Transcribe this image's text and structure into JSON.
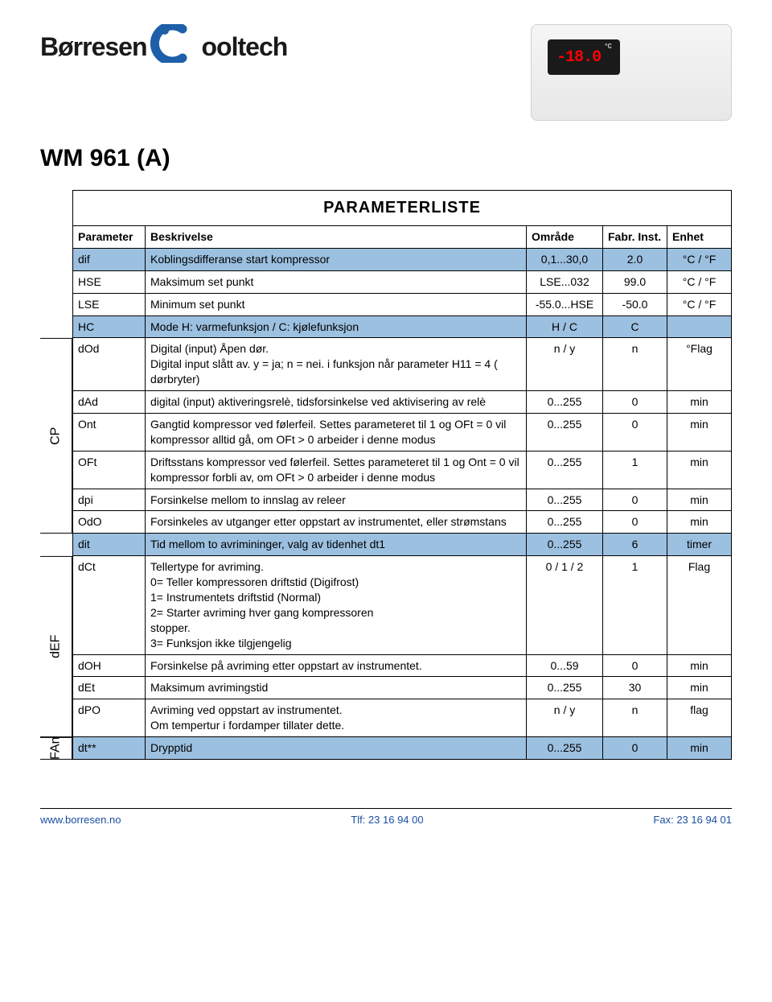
{
  "logo": {
    "left": "Børresen",
    "right": "ooltech"
  },
  "device_display": "-18.0",
  "title": "WM 961 (A)",
  "table_title": "PARAMETERLISTE",
  "columns": [
    "Parameter",
    "Beskrivelse",
    "Område",
    "Fabr. Inst.",
    "Enhet"
  ],
  "group_labels": {
    "cp": "CP",
    "def": "dEF",
    "fan": "FAn"
  },
  "rows": [
    {
      "hl": true,
      "p": "dif",
      "d": "Koblingsdifferanse start kompressor",
      "r": "0,1...30,0",
      "i": "2.0",
      "u": "°C / °F"
    },
    {
      "hl": false,
      "p": "HSE",
      "d": "Maksimum set punkt",
      "r": "LSE...032",
      "i": "99.0",
      "u": "°C / °F"
    },
    {
      "hl": false,
      "p": "LSE",
      "d": "Minimum set punkt",
      "r": "-55.0...HSE",
      "i": "-50.0",
      "u": "°C / °F"
    },
    {
      "hl": true,
      "p": "HC",
      "d": "Mode H: varmefunksjon / C: kjølefunksjon",
      "r": "H / C",
      "i": "C",
      "u": ""
    },
    {
      "hl": false,
      "p": "dOd",
      "d": "Digital (input) Åpen dør.\nDigital input slått av. y = ja; n = nei. i funksjon når parameter H11 = 4 ( dørbryter)",
      "r": "n / y",
      "i": "n",
      "u": "°Flag"
    },
    {
      "hl": false,
      "p": "dAd",
      "d": "digital (input) aktiveringsrelè, tidsforsinkelse ved aktivisering av  relè",
      "r": "0...255",
      "i": "0",
      "u": "min"
    },
    {
      "hl": false,
      "p": "Ont",
      "d": "Gangtid kompressor ved følerfeil. Settes parameteret til 1 og OFt = 0 vil kompressor alltid gå, om OFt > 0 arbeider i denne modus",
      "r": "0...255",
      "i": "0",
      "u": "min"
    },
    {
      "hl": false,
      "p": "OFt",
      "d": "Driftsstans kompressor ved følerfeil. Settes parameteret til 1 og Ont = 0 vil kompressor forbli av, om OFt > 0 arbeider i denne modus",
      "r": "0...255",
      "i": "1",
      "u": "min"
    },
    {
      "hl": false,
      "p": "dpi",
      "d": "Forsinkelse mellom to innslag av releer",
      "r": "0...255",
      "i": "0",
      "u": "min"
    },
    {
      "hl": false,
      "p": "OdO",
      "d": "Forsinkeles av utganger etter oppstart av instrumentet, eller strømstans",
      "r": "0...255",
      "i": "0",
      "u": "min"
    },
    {
      "hl": true,
      "p": "dit",
      "d": "Tid mellom to avrimininger, valg av tidenhet dt1",
      "r": "0...255",
      "i": "6",
      "u": "timer"
    },
    {
      "hl": false,
      "p": "dCt",
      "d": "Tellertype for avriming.\n0= Teller kompressoren driftstid (Digifrost)\n1= Instrumentets driftstid (Normal)\n2= Starter avriming hver gang kompressoren\n     stopper.\n3= Funksjon ikke tilgjengelig",
      "r": "0 / 1 / 2",
      "i": "1",
      "u": "Flag"
    },
    {
      "hl": false,
      "p": "dOH",
      "d": "Forsinkelse på avriming etter oppstart av instrumentet.",
      "r": "0...59",
      "i": "0",
      "u": "min"
    },
    {
      "hl": false,
      "p": "dEt",
      "d": "Maksimum avrimingstid",
      "r": "0...255",
      "i": "30",
      "u": "min"
    },
    {
      "hl": false,
      "p": "dPO",
      "d": "Avriming ved oppstart av instrumentet.\nOm tempertur i fordamper tillater dette.",
      "r": "n / y",
      "i": "n",
      "u": "flag"
    },
    {
      "hl": true,
      "p": "dt**",
      "d": "Drypptid",
      "r": "0...255",
      "i": "0",
      "u": "min"
    }
  ],
  "footer": {
    "left": "www.borresen.no",
    "mid": "Tlf: 23 16 94 00",
    "right": "Fax: 23 16 94 01"
  },
  "colors": {
    "highlight": "#9cc0e0",
    "footer_text": "#1b4fa0",
    "border": "#000000",
    "swoosh_blue": "#1d5fa8",
    "lcd_bg": "#1a1a1a",
    "lcd_text": "#ff1a1a"
  }
}
